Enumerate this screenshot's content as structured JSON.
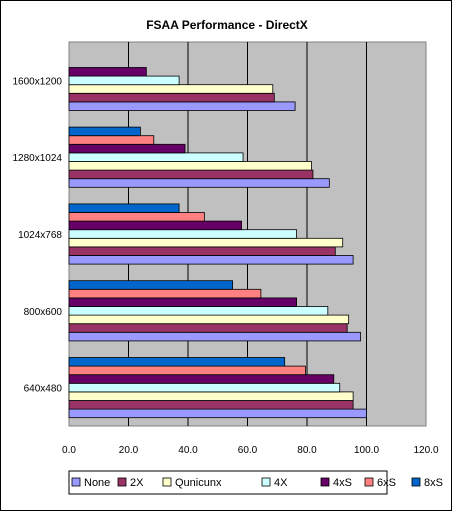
{
  "chart_data": {
    "type": "bar",
    "orientation": "horizontal",
    "title": "FSAA Performance - DirectX",
    "xlabel": "",
    "ylabel": "",
    "xlim": [
      0,
      120
    ],
    "x_ticks": [
      "0.0",
      "20.0",
      "40.0",
      "60.0",
      "80.0",
      "100.0",
      "120.0"
    ],
    "categories": [
      "640x480",
      "800x600",
      "1024x768",
      "1280x1024",
      "1600x1200"
    ],
    "legend_position": "bottom",
    "grid": true,
    "series": [
      {
        "name": "None",
        "color": "#9999ff",
        "values": [
          100.0,
          98.0,
          95.5,
          87.5,
          76.0
        ]
      },
      {
        "name": "2X",
        "color": "#993366",
        "values": [
          95.5,
          93.5,
          89.5,
          82.0,
          69.0
        ]
      },
      {
        "name": "Qunicunx",
        "color": "#ffffcc",
        "values": [
          95.5,
          94.0,
          92.0,
          81.5,
          68.5
        ]
      },
      {
        "name": "4X",
        "color": "#ccffff",
        "values": [
          91.0,
          87.0,
          76.5,
          58.5,
          37.0
        ]
      },
      {
        "name": "4xS",
        "color": "#660066",
        "values": [
          89.0,
          76.5,
          58.0,
          39.0,
          26.0
        ]
      },
      {
        "name": "6xS",
        "color": "#ff8080",
        "values": [
          79.5,
          64.5,
          45.5,
          28.5,
          null
        ]
      },
      {
        "name": "8xS",
        "color": "#0066cc",
        "values": [
          72.5,
          55.0,
          37.0,
          24.0,
          null
        ]
      }
    ]
  }
}
